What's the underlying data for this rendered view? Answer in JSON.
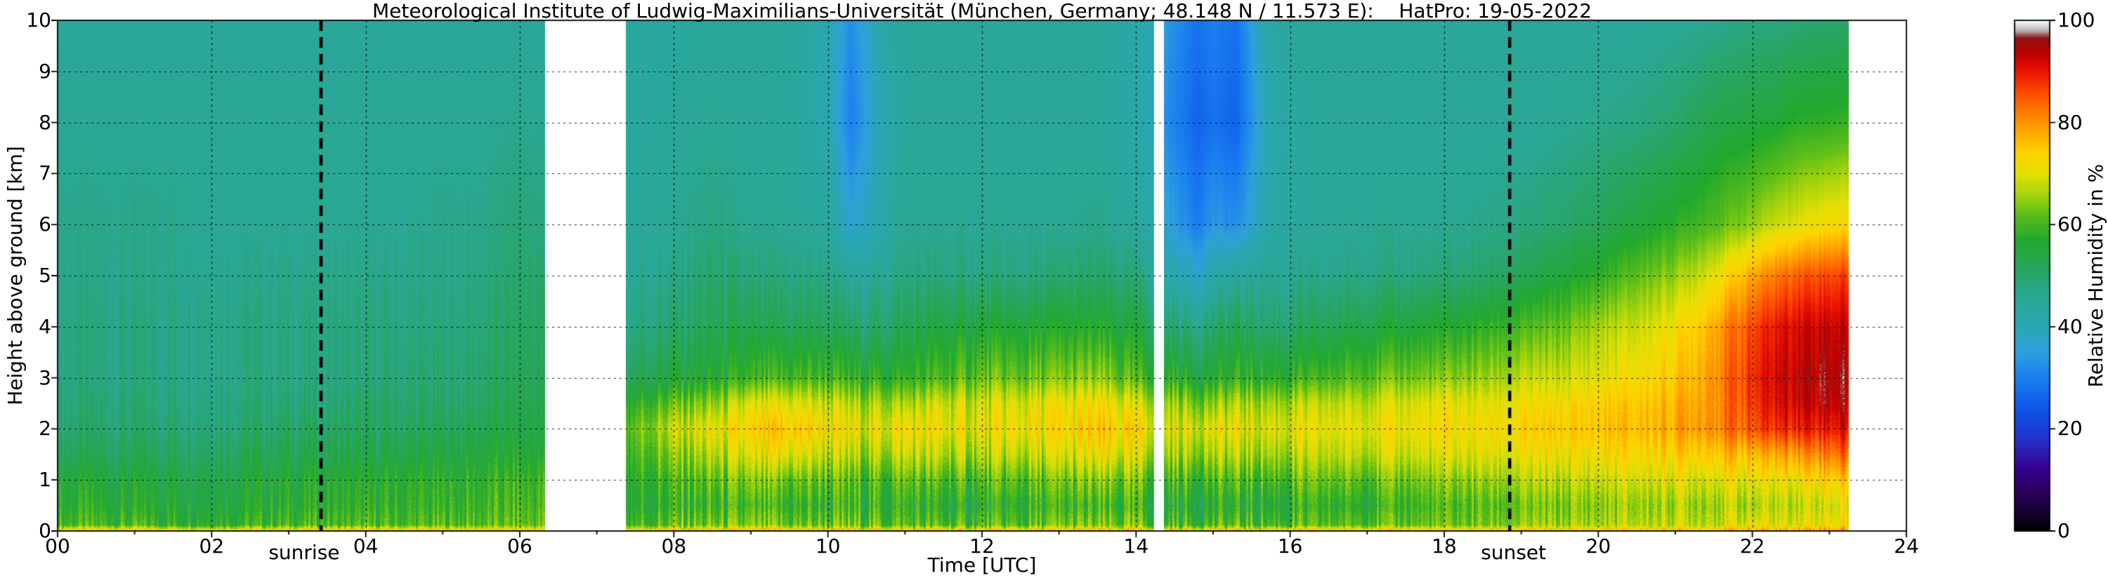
{
  "chart_data": {
    "type": "heatmap",
    "title": "Meteorological Institute of Ludwig-Maximilians-Universität (München, Germany; 48.148 N / 11.573 E):    HatPro: 19-05-2022",
    "xlabel": "Time [UTC]",
    "ylabel": "Height above ground [km]",
    "xlim": [
      0,
      24
    ],
    "ylim": [
      0,
      10
    ],
    "grid": true,
    "xticks": {
      "values": [
        0,
        2,
        4,
        6,
        8,
        10,
        12,
        14,
        16,
        18,
        20,
        22,
        24
      ],
      "labels": [
        "00",
        "02",
        "04",
        "06",
        "08",
        "10",
        "12",
        "14",
        "16",
        "18",
        "20",
        "22",
        "24"
      ]
    },
    "yticks": {
      "values": [
        0,
        1,
        2,
        3,
        4,
        5,
        6,
        7,
        8,
        9,
        10
      ],
      "labels": [
        "0",
        "1",
        "2",
        "3",
        "4",
        "5",
        "6",
        "7",
        "8",
        "9",
        "10"
      ]
    },
    "colorbar": {
      "label": "Relative Humidity in %",
      "tick_values": [
        0,
        20,
        40,
        60,
        80,
        100
      ],
      "tick_labels": [
        "0",
        "20",
        "40",
        "60",
        "80",
        "100"
      ],
      "colormap_stops": [
        [
          0,
          "#000000"
        ],
        [
          6,
          "#22004c"
        ],
        [
          12,
          "#38008c"
        ],
        [
          18,
          "#2233cc"
        ],
        [
          24,
          "#0d55e8"
        ],
        [
          30,
          "#1b80f0"
        ],
        [
          35,
          "#2f9fdd"
        ],
        [
          40,
          "#2aa7b2"
        ],
        [
          46,
          "#2aa795"
        ],
        [
          52,
          "#28a558"
        ],
        [
          57,
          "#22a82e"
        ],
        [
          62,
          "#5cbe19"
        ],
        [
          66,
          "#a9d40d"
        ],
        [
          70,
          "#e6e006"
        ],
        [
          74,
          "#ffd300"
        ],
        [
          78,
          "#ffa900"
        ],
        [
          82,
          "#ff7b00"
        ],
        [
          86,
          "#fb4a00"
        ],
        [
          90,
          "#e91300"
        ],
        [
          94,
          "#b60000"
        ],
        [
          96.5,
          "#8c1616"
        ],
        [
          98,
          "#b8b2ae"
        ],
        [
          100,
          "#ffffff"
        ]
      ]
    },
    "annotations": [
      {
        "text": "sunrise",
        "line_time_utc": 3.42,
        "label_time_utc": 3.2
      },
      {
        "text": "sunset",
        "line_time_utc": 18.85,
        "label_time_utc": 18.9
      }
    ],
    "data_gaps_utc": [
      [
        6.33,
        7.38
      ],
      [
        14.23,
        14.36
      ],
      [
        23.25,
        24
      ]
    ],
    "heights_km": [
      0,
      0.12,
      0.5,
      1,
      1.5,
      2,
      2.5,
      3,
      4,
      5,
      6,
      8,
      10
    ],
    "times_utc": [
      0,
      0.5,
      1,
      1.5,
      2,
      2.5,
      3,
      3.5,
      4,
      4.5,
      5,
      5.5,
      6,
      6.3,
      7.4,
      8,
      8.5,
      9,
      9.5,
      10,
      10.3,
      10.7,
      11,
      11.5,
      12,
      12.5,
      13,
      13.5,
      14,
      14.2,
      14.4,
      14.8,
      15,
      15.3,
      15.7,
      16,
      16.5,
      17,
      17.5,
      18,
      18.5,
      19,
      19.5,
      20,
      20.5,
      21,
      21.3,
      21.6,
      22,
      22.3,
      22.6,
      22.9,
      23.2
    ],
    "humidity_grid_percent": [
      [
        75,
        60,
        57,
        56,
        52,
        50,
        49,
        48,
        48,
        47,
        47,
        46,
        45
      ],
      [
        75,
        60,
        57,
        55,
        52,
        50,
        49,
        48,
        48,
        47,
        47,
        46,
        45
      ],
      [
        75,
        60,
        56,
        55,
        52,
        50,
        49,
        48,
        48,
        47,
        47,
        46,
        45
      ],
      [
        75,
        59,
        56,
        55,
        52,
        50,
        49,
        48,
        48,
        47,
        47,
        46,
        45
      ],
      [
        75,
        59,
        56,
        55,
        52,
        50,
        49,
        48,
        48,
        47,
        46,
        46,
        45
      ],
      [
        75,
        59,
        56,
        55,
        53,
        50,
        49,
        48,
        48,
        47,
        46,
        46,
        45
      ],
      [
        75,
        60,
        57,
        56,
        53,
        51,
        49,
        48,
        48,
        47,
        46,
        46,
        45
      ],
      [
        75,
        60,
        57,
        56,
        53,
        51,
        49,
        48,
        48,
        47,
        46,
        46,
        45
      ],
      [
        75,
        60,
        57,
        56,
        53,
        51,
        50,
        48,
        48,
        47,
        46,
        46,
        45
      ],
      [
        75,
        60,
        58,
        57,
        54,
        51,
        50,
        49,
        48,
        47,
        46,
        46,
        45
      ],
      [
        75,
        61,
        58,
        57,
        54,
        52,
        50,
        49,
        48,
        47,
        47,
        46,
        45
      ],
      [
        75,
        61,
        59,
        58,
        55,
        53,
        51,
        50,
        49,
        48,
        47,
        46,
        45
      ],
      [
        75,
        62,
        60,
        59,
        56,
        54,
        53,
        52,
        51,
        50,
        49,
        47,
        45
      ],
      [
        75,
        62,
        60,
        59,
        56,
        54,
        53,
        52,
        51,
        50,
        48,
        46,
        45
      ],
      [
        75,
        60,
        57,
        58,
        60,
        62,
        58,
        52,
        48,
        46,
        45,
        44,
        44
      ],
      [
        75,
        62,
        58,
        60,
        64,
        68,
        62,
        55,
        50,
        47,
        46,
        45,
        44
      ],
      [
        75,
        62,
        58,
        61,
        66,
        70,
        64,
        56,
        52,
        50,
        48,
        46,
        45
      ],
      [
        75,
        62,
        58,
        62,
        68,
        72,
        68,
        58,
        52,
        48,
        46,
        45,
        45
      ],
      [
        75,
        62,
        58,
        62,
        70,
        75,
        70,
        60,
        52,
        48,
        46,
        45,
        45
      ],
      [
        75,
        62,
        58,
        62,
        68,
        72,
        68,
        60,
        52,
        48,
        44,
        41,
        41
      ],
      [
        75,
        62,
        58,
        60,
        66,
        70,
        66,
        58,
        50,
        44,
        36,
        30,
        32
      ],
      [
        75,
        62,
        58,
        60,
        66,
        70,
        66,
        58,
        50,
        46,
        42,
        40,
        42
      ],
      [
        75,
        61,
        58,
        62,
        68,
        72,
        66,
        58,
        52,
        48,
        46,
        45,
        45
      ],
      [
        75,
        60,
        56,
        60,
        66,
        70,
        68,
        60,
        54,
        48,
        46,
        45,
        45
      ],
      [
        75,
        60,
        56,
        60,
        66,
        70,
        68,
        62,
        55,
        48,
        46,
        45,
        45
      ],
      [
        75,
        60,
        57,
        61,
        67,
        71,
        69,
        62,
        55,
        48,
        46,
        45,
        45
      ],
      [
        75,
        62,
        58,
        62,
        68,
        72,
        70,
        63,
        56,
        49,
        46,
        45,
        45
      ],
      [
        75,
        62,
        58,
        63,
        70,
        74,
        71,
        64,
        56,
        50,
        47,
        45,
        45
      ],
      [
        75,
        62,
        58,
        62,
        68,
        72,
        68,
        60,
        54,
        48,
        44,
        42,
        42
      ],
      [
        75,
        61,
        57,
        61,
        67,
        71,
        67,
        59,
        52,
        46,
        42,
        40,
        40
      ],
      [
        75,
        60,
        56,
        60,
        66,
        70,
        66,
        58,
        50,
        42,
        36,
        32,
        34
      ],
      [
        75,
        60,
        56,
        60,
        66,
        70,
        64,
        56,
        48,
        38,
        30,
        26,
        28
      ],
      [
        75,
        60,
        56,
        60,
        66,
        70,
        64,
        56,
        50,
        42,
        34,
        28,
        30
      ],
      [
        75,
        60,
        56,
        60,
        66,
        70,
        66,
        58,
        52,
        44,
        32,
        26,
        28
      ],
      [
        75,
        60,
        56,
        60,
        66,
        70,
        66,
        58,
        50,
        46,
        42,
        40,
        42
      ],
      [
        75,
        60,
        57,
        61,
        66,
        70,
        66,
        58,
        50,
        46,
        44,
        44,
        45
      ],
      [
        75,
        61,
        58,
        62,
        67,
        70,
        67,
        60,
        52,
        47,
        45,
        45,
        45
      ],
      [
        75,
        62,
        58,
        62,
        68,
        71,
        68,
        62,
        54,
        48,
        46,
        45,
        45
      ],
      [
        75,
        62,
        59,
        63,
        68,
        71,
        69,
        63,
        55,
        48,
        46,
        45,
        45
      ],
      [
        75,
        62,
        60,
        64,
        69,
        72,
        70,
        64,
        56,
        49,
        46,
        45,
        45
      ],
      [
        75,
        63,
        61,
        65,
        70,
        72,
        70,
        65,
        58,
        50,
        47,
        45,
        45
      ],
      [
        75,
        64,
        62,
        66,
        70,
        73,
        71,
        67,
        60,
        52,
        48,
        45,
        45
      ],
      [
        75,
        65,
        63,
        67,
        71,
        74,
        72,
        68,
        62,
        55,
        50,
        46,
        45
      ],
      [
        76,
        66,
        64,
        68,
        72,
        75,
        74,
        70,
        66,
        58,
        52,
        47,
        45
      ],
      [
        76,
        67,
        65,
        69,
        73,
        76,
        75,
        72,
        68,
        62,
        55,
        48,
        45
      ],
      [
        76,
        68,
        66,
        70,
        74,
        78,
        77,
        75,
        72,
        65,
        58,
        50,
        46
      ],
      [
        77,
        68,
        66,
        70,
        75,
        80,
        79,
        78,
        75,
        68,
        60,
        52,
        46
      ],
      [
        77,
        69,
        67,
        71,
        76,
        82,
        82,
        82,
        80,
        72,
        62,
        54,
        47
      ],
      [
        78,
        70,
        66,
        70,
        76,
        85,
        87,
        88,
        86,
        78,
        65,
        55,
        48
      ],
      [
        78,
        70,
        67,
        71,
        78,
        88,
        91,
        92,
        90,
        82,
        68,
        56,
        48
      ],
      [
        79,
        71,
        68,
        72,
        80,
        90,
        93,
        94,
        92,
        85,
        70,
        58,
        49
      ],
      [
        80,
        72,
        69,
        74,
        82,
        90,
        94,
        95,
        93,
        86,
        72,
        58,
        50
      ],
      [
        80,
        72,
        70,
        75,
        84,
        91,
        94,
        95,
        93,
        87,
        73,
        59,
        50
      ]
    ]
  }
}
